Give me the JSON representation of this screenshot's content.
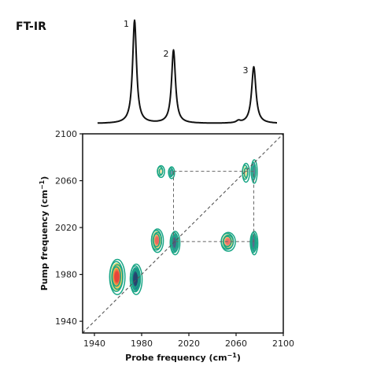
{
  "chart_data": [
    {
      "type": "line",
      "title": "FT-IR",
      "description_units": "cm-1",
      "xlim": [
        1930,
        2100
      ],
      "peaks": [
        {
          "label": "1",
          "x": 1974,
          "height": 1.0,
          "width": 2.0
        },
        {
          "label": "2",
          "x": 2007,
          "height": 0.71,
          "width": 2.0
        },
        {
          "label": "3",
          "x": 2075,
          "height": 0.55,
          "width": 2.2
        }
      ],
      "baseline_bumps": [
        {
          "x": 2062,
          "height": 0.02,
          "width": 2.0
        }
      ]
    },
    {
      "type": "contour",
      "xlabel": "Probe frequency (cm",
      "xlabel_sup": "−1",
      "xlabel_end": ")",
      "ylabel": "Pump frequency (cm",
      "ylabel_sup": "−1",
      "ylabel_end": ")",
      "xlim": [
        1930,
        2100
      ],
      "ylim": [
        1930,
        2100
      ],
      "xticks": [
        1940,
        1980,
        2020,
        2060,
        2100
      ],
      "yticks": [
        1940,
        1980,
        2020,
        2060,
        2100
      ],
      "diagonal": true,
      "guide_box": {
        "x": [
          2007,
          2075
        ],
        "y": [
          2008,
          2068
        ]
      },
      "features": [
        {
          "x": 1959,
          "y": 1978,
          "sx": 6.5,
          "sy": 15,
          "sign": "positive",
          "strength": 1.0
        },
        {
          "x": 1975,
          "y": 1976,
          "sx": 5,
          "sy": 13,
          "sign": "negative",
          "strength": 0.95
        },
        {
          "x": 1993,
          "y": 2009,
          "sx": 5,
          "sy": 10,
          "sign": "positive",
          "strength": 0.7
        },
        {
          "x": 2008,
          "y": 2007,
          "sx": 4,
          "sy": 10,
          "sign": "negative",
          "strength": 0.7
        },
        {
          "x": 1996,
          "y": 2068,
          "sx": 3,
          "sy": 5,
          "sign": "positive",
          "strength": 0.25
        },
        {
          "x": 2005,
          "y": 2067,
          "sx": 2.5,
          "sy": 5,
          "sign": "negative",
          "strength": 0.3
        },
        {
          "x": 2053,
          "y": 2008,
          "sx": 6,
          "sy": 8,
          "sign": "positive",
          "strength": 0.6
        },
        {
          "x": 2075,
          "y": 2007,
          "sx": 3,
          "sy": 10,
          "sign": "negative",
          "strength": 0.6
        },
        {
          "x": 2068,
          "y": 2067,
          "sx": 3,
          "sy": 8,
          "sign": "positive",
          "strength": 0.4
        },
        {
          "x": 2075,
          "y": 2068,
          "sx": 2.5,
          "sy": 10,
          "sign": "negative",
          "strength": 0.45
        }
      ],
      "colors": {
        "contour": "#1aa686",
        "high": "#e8443a",
        "mid": "#f2b84b",
        "low": "#d7df7a",
        "neg_core": "#1f3f6b",
        "neg_mid": "#1b7f8f",
        "axis": "#111111",
        "guide": "#666666"
      }
    }
  ]
}
